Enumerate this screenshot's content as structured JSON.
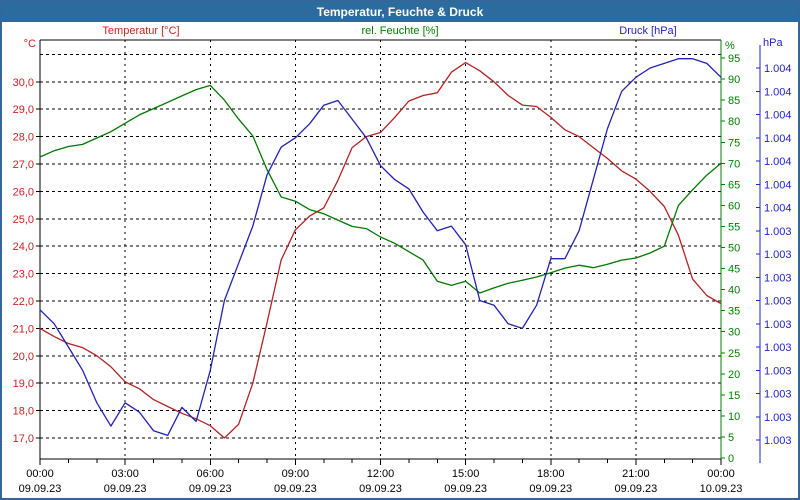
{
  "window": {
    "title": "Temperatur, Feuchte & Druck",
    "titlebar_color": "#2b6b9e",
    "border_color": "#336699"
  },
  "header": {
    "temperature": "Temperatur [°C]",
    "humidity": "rel. Feuchte [%]",
    "pressure": "Druck [hPa]"
  },
  "axes": {
    "temperature": {
      "unit": "°C",
      "color": "#cc2222",
      "tick_labels": [
        "30,0",
        "29,0",
        "28,0",
        "27,0",
        "26,0",
        "25,0",
        "24,0",
        "23,0",
        "22,0",
        "21,0",
        "20,0",
        "19,0",
        "18,0",
        "17,0"
      ],
      "tick_values": [
        30,
        29,
        28,
        27,
        26,
        25,
        24,
        23,
        22,
        21,
        20,
        19,
        18,
        17
      ],
      "gridline_values": [
        31,
        30,
        29,
        28,
        27,
        26,
        25,
        24,
        23,
        22,
        21,
        20,
        19,
        18,
        17
      ],
      "range": [
        17,
        31
      ]
    },
    "humidity": {
      "unit": "%",
      "color": "#008000",
      "tick_labels": [
        "0",
        "5",
        "10",
        "15",
        "20",
        "25",
        "30",
        "35",
        "40",
        "45",
        "50",
        "55",
        "60",
        "65",
        "70",
        "75",
        "80",
        "85",
        "90",
        "95"
      ],
      "tick_values": [
        0,
        5,
        10,
        15,
        20,
        25,
        30,
        35,
        40,
        45,
        50,
        55,
        60,
        65,
        70,
        75,
        80,
        85,
        90,
        95
      ],
      "range": [
        0,
        95
      ]
    },
    "pressure": {
      "unit": "hPa",
      "color": "#2222cc",
      "tick_labels": [
        "1.004",
        "1.004",
        "1.004",
        "1.004",
        "1.004",
        "1.004",
        "1.004",
        "1.003",
        "1.003",
        "1.003",
        "1.003",
        "1.003",
        "1.003",
        "1.003",
        "1.003",
        "1.003",
        "1.003"
      ],
      "range_hpa": [
        1003.0,
        1003.8
      ],
      "tick_step_hpa": 0.05
    },
    "time": {
      "gridline_hours": [
        3,
        6,
        9,
        12,
        15,
        18,
        21
      ],
      "label_hours": [
        0,
        3,
        6,
        9,
        12,
        15,
        18,
        21,
        24
      ],
      "minor_tick_step_hours": 1
    }
  },
  "chart_data": {
    "type": "line",
    "title": "Temperatur, Feuchte & Druck",
    "grid": true,
    "legend_position": "top",
    "x_unit": "hours",
    "x_tick_labels": [
      "00:00",
      "03:00",
      "06:00",
      "09:00",
      "12:00",
      "15:00",
      "18:00",
      "21:00",
      "00:00"
    ],
    "x_tick_dates": [
      "09.09.23",
      "09.09.23",
      "09.09.23",
      "09.09.23",
      "09.09.23",
      "09.09.23",
      "09.09.23",
      "09.09.23",
      "10.09.23"
    ],
    "x_hours": [
      0,
      0.5,
      1,
      1.5,
      2,
      2.5,
      3,
      3.5,
      4,
      4.5,
      5,
      5.5,
      6,
      6.5,
      7,
      7.5,
      8,
      8.5,
      9,
      9.5,
      10,
      10.5,
      11,
      11.5,
      12,
      12.5,
      13,
      13.5,
      14,
      14.5,
      15,
      15.5,
      16,
      16.5,
      17,
      17.5,
      18,
      18.5,
      19,
      19.5,
      20,
      20.5,
      21,
      21.5,
      22,
      22.5,
      23,
      23.5,
      24
    ],
    "series": [
      {
        "name": "Temperatur [°C]",
        "axis": "temperature",
        "unit": "°C",
        "color": "#b22222",
        "values": [
          21.0,
          20.7,
          20.45,
          20.3,
          20.0,
          19.6,
          19.05,
          18.8,
          18.4,
          18.15,
          17.9,
          17.7,
          17.45,
          17.0,
          17.5,
          19.0,
          21.2,
          23.5,
          24.6,
          25.1,
          25.4,
          26.4,
          27.6,
          28.0,
          28.15,
          28.7,
          29.3,
          29.5,
          29.6,
          30.35,
          30.7,
          30.4,
          30.0,
          29.5,
          29.15,
          29.1,
          28.7,
          28.25,
          28.0,
          27.6,
          27.2,
          26.75,
          26.45,
          26.0,
          25.45,
          24.4,
          22.8,
          22.2,
          21.9
        ]
      },
      {
        "name": "rel. Feuchte [%]",
        "axis": "humidity",
        "unit": "%",
        "color": "#007700",
        "values": [
          71.5,
          73,
          74,
          74.5,
          76,
          77.5,
          79.5,
          81.5,
          83,
          84.5,
          86,
          87.5,
          88.5,
          85,
          80.5,
          76.5,
          68.5,
          62,
          61,
          59,
          58,
          56.5,
          55,
          54.5,
          52.5,
          51,
          49,
          47,
          42,
          41,
          42,
          39.2,
          40.4,
          41.5,
          42.2,
          43,
          44,
          45.1,
          45.8,
          45.2,
          46,
          47,
          47.5,
          48.7,
          50.3,
          60,
          63.7,
          67.2,
          70
        ]
      },
      {
        "name": "Druck [hPa]",
        "axis": "pressure",
        "unit": "hPa",
        "color": "#2222b2",
        "values": [
          1003.28,
          1003.25,
          1003.2,
          1003.15,
          1003.08,
          1003.03,
          1003.08,
          1003.06,
          1003.02,
          1003.01,
          1003.07,
          1003.04,
          1003.15,
          1003.3,
          1003.38,
          1003.46,
          1003.57,
          1003.63,
          1003.65,
          1003.68,
          1003.72,
          1003.73,
          1003.69,
          1003.65,
          1003.59,
          1003.56,
          1003.54,
          1003.49,
          1003.45,
          1003.46,
          1003.42,
          1003.3,
          1003.29,
          1003.25,
          1003.24,
          1003.29,
          1003.39,
          1003.39,
          1003.45,
          1003.56,
          1003.67,
          1003.75,
          1003.78,
          1003.8,
          1003.81,
          1003.82,
          1003.82,
          1003.81,
          1003.78
        ]
      }
    ]
  }
}
